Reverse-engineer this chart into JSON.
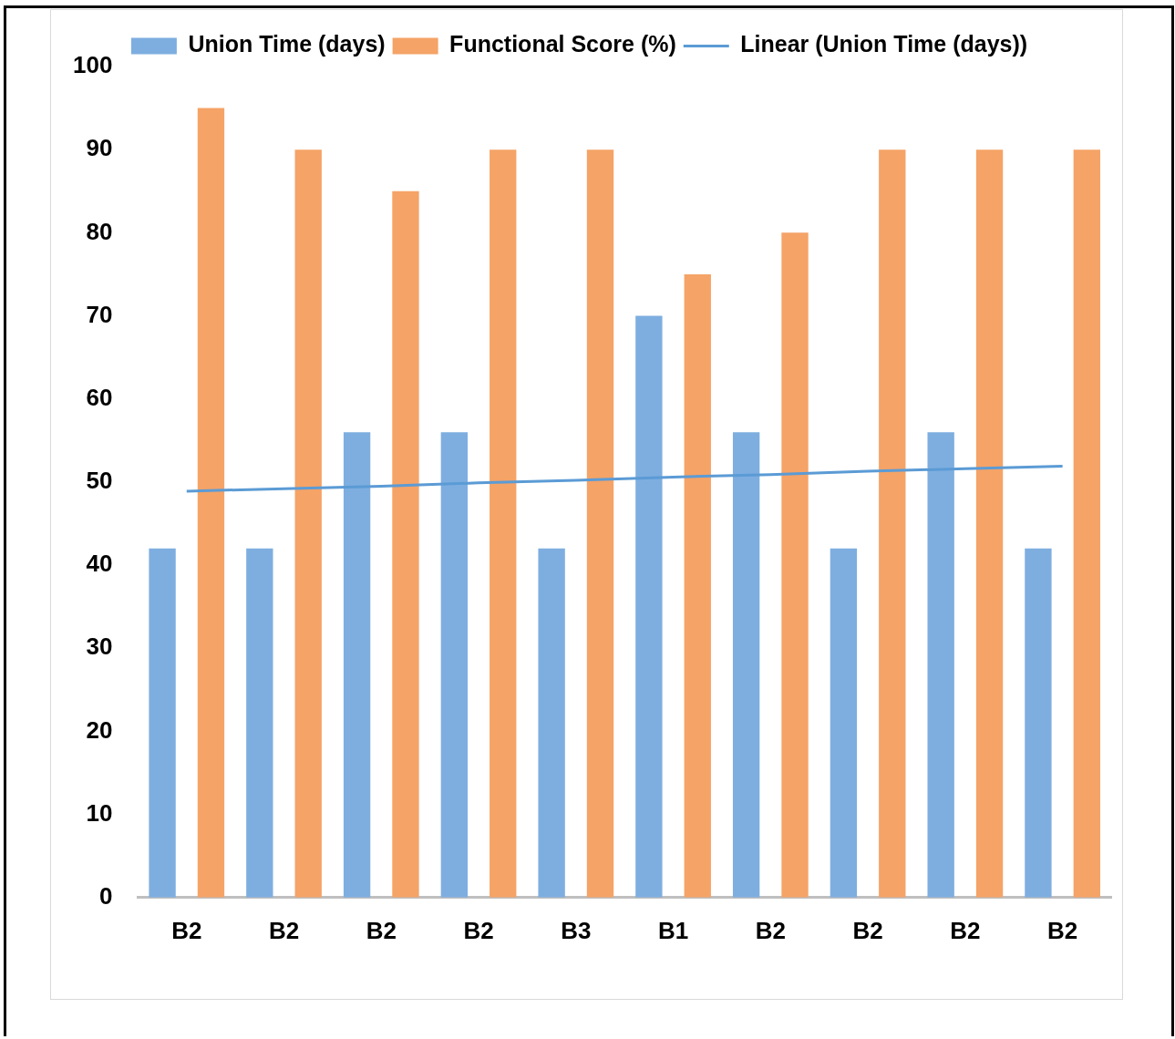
{
  "chart_data": {
    "type": "bar",
    "categories": [
      "B2",
      "B2",
      "B2",
      "B2",
      "B3",
      "B1",
      "B2",
      "B2",
      "B2",
      "B2"
    ],
    "series": [
      {
        "name": "Union Time (days)",
        "color": "#7eaee0",
        "values": [
          42,
          42,
          56,
          56,
          42,
          70,
          56,
          42,
          56,
          42
        ]
      },
      {
        "name": "Functional Score (%)",
        "color": "#f5a367",
        "values": [
          95,
          90,
          85,
          90,
          90,
          75,
          80,
          90,
          90,
          90
        ]
      },
      {
        "name": "Linear (Union Time (days))",
        "type": "line",
        "color": "#5b9bd5",
        "values": [
          48.9,
          49.2,
          49.5,
          49.9,
          50.2,
          50.6,
          50.9,
          51.3,
          51.6,
          51.9
        ]
      }
    ],
    "ylim": [
      0,
      100
    ],
    "yticks": [
      0,
      10,
      20,
      30,
      40,
      50,
      60,
      70,
      80,
      90,
      100
    ],
    "grid": false,
    "legend": "top",
    "marker": "none"
  }
}
